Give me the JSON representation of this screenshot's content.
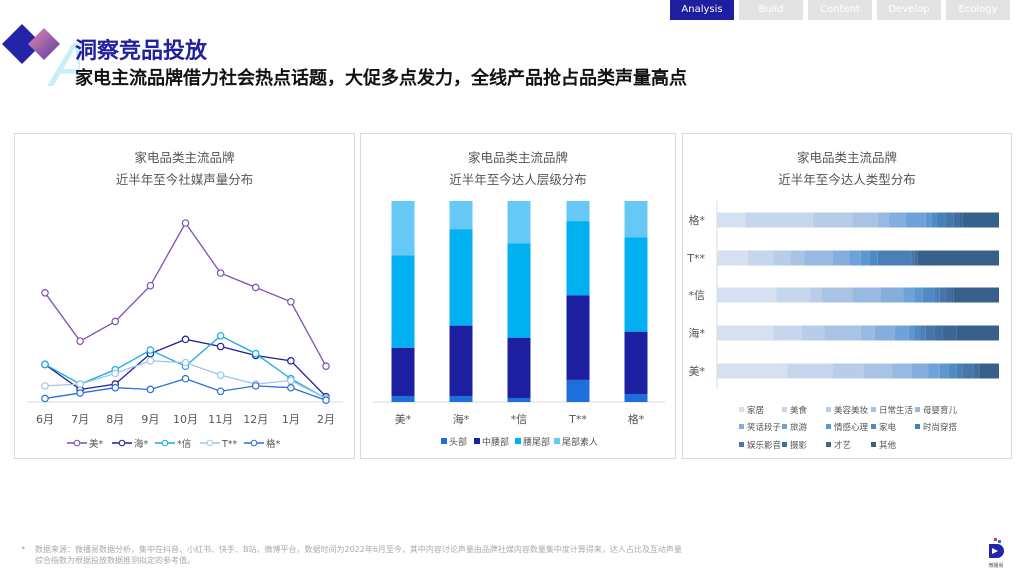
{
  "nav": {
    "tabs": [
      {
        "label": "Analysis",
        "active": true
      },
      {
        "label": "Build"
      },
      {
        "label": "Content"
      },
      {
        "label": "Develop"
      },
      {
        "label": "Ecology"
      }
    ]
  },
  "header": {
    "title": "洞察竞品投放",
    "subtitle": "家电主流品牌借力社会热点话题，大促多点发力，全线产品抢占品类声量高点"
  },
  "chart_data": [
    {
      "type": "line",
      "title": "家电品类主流品牌",
      "subtitle": "近半年至今社媒声量分布",
      "categories": [
        "6月",
        "7月",
        "8月",
        "9月",
        "10月",
        "11月",
        "12月",
        "1月",
        "2月"
      ],
      "ylim": [
        0,
        100
      ],
      "grid": false,
      "legend": "bottom",
      "series": [
        {
          "name": "美*",
          "color": "#7f4fb5",
          "values": [
            61,
            34,
            45,
            65,
            100,
            72,
            64,
            56,
            20
          ]
        },
        {
          "name": "海*",
          "color": "#1f1f9e",
          "values": [
            21,
            7,
            10,
            27,
            35,
            31,
            26,
            23,
            3
          ]
        },
        {
          "name": "*信",
          "color": "#16a9e8",
          "values": [
            21,
            10,
            18,
            29,
            20,
            37,
            27,
            13,
            2
          ]
        },
        {
          "name": "T**",
          "color": "#9fc6ea",
          "values": [
            9,
            10,
            16,
            23,
            22,
            15,
            10,
            12,
            2
          ]
        },
        {
          "name": "格*",
          "color": "#2a6fdb",
          "values": [
            2,
            5,
            8,
            7,
            13,
            6,
            9,
            8,
            1
          ]
        }
      ]
    },
    {
      "type": "bar",
      "stacked": true,
      "title": "家电品类主流品牌",
      "subtitle": "近半年至今达人层级分布",
      "categories": [
        "美*",
        "海*",
        "*信",
        "T**",
        "格*"
      ],
      "ylim": [
        0,
        100
      ],
      "legend": "bottom",
      "series": [
        {
          "name": "头部",
          "color": "#1e6fdc",
          "values": [
            3,
            3,
            2,
            11,
            4
          ]
        },
        {
          "name": "中腰部",
          "color": "#1c1fa0",
          "values": [
            24,
            35,
            30,
            42,
            31
          ]
        },
        {
          "name": "腰尾部",
          "color": "#00b0f0",
          "values": [
            46,
            48,
            47,
            37,
            47
          ]
        },
        {
          "name": "尾部素人",
          "color": "#66c8f5",
          "values": [
            27,
            14,
            21,
            10,
            18
          ]
        }
      ]
    },
    {
      "type": "bar",
      "orientation": "horizontal",
      "stacked": true,
      "title": "家电品类主流品牌",
      "subtitle": "近半年至今达人类型分布",
      "categories": [
        "格*",
        "T**",
        "*信",
        "海*",
        "美*"
      ],
      "xlim": [
        0,
        100
      ],
      "legend": "bottom",
      "series_names": [
        "家居",
        "美食",
        "美容美妆",
        "日常生活",
        "母婴育儿",
        "笑话段子",
        "旅游",
        "情感心理",
        "家电",
        "时尚穿搭",
        "娱乐影音",
        "摄影",
        "才艺",
        "其他"
      ],
      "colors": [
        "#d5e0f0",
        "#c6d6ed",
        "#b8cde9",
        "#a9c3e5",
        "#98b9e2",
        "#86aedd",
        "#6ea3da",
        "#5b98d2",
        "#5089c3",
        "#4a7fb7",
        "#4677aa",
        "#416e9f",
        "#3c6795",
        "#37608a"
      ],
      "values": [
        [
          10,
          24,
          14,
          9,
          4,
          6,
          7,
          2,
          2,
          3,
          3,
          2,
          1,
          13
        ],
        [
          11,
          9,
          6,
          5,
          10,
          6,
          4,
          3,
          3,
          12,
          1,
          1,
          0,
          29
        ],
        [
          21,
          12,
          4,
          11,
          10,
          8,
          4,
          3,
          4,
          2,
          2,
          2,
          1,
          16
        ],
        [
          20,
          10,
          8,
          13,
          5,
          7,
          5,
          2,
          2,
          2,
          3,
          3,
          5,
          15
        ],
        [
          25,
          16,
          11,
          10,
          7,
          6,
          4,
          3,
          3,
          2,
          4,
          2,
          0,
          7
        ]
      ]
    }
  ],
  "footer": {
    "bullet": "•",
    "line1": "数据来源：微播易数据分析，集中在抖音、小红书、快手、B站、微博平台，数据时间为2022年6月至今，其中内容讨论声量由品牌社媒内容数量集中度计算得来，达人占比及互动声量",
    "line2": "综合指数为根据投放数据推测拟定的参考值。"
  },
  "brand": {
    "logo_text": "微播易"
  }
}
